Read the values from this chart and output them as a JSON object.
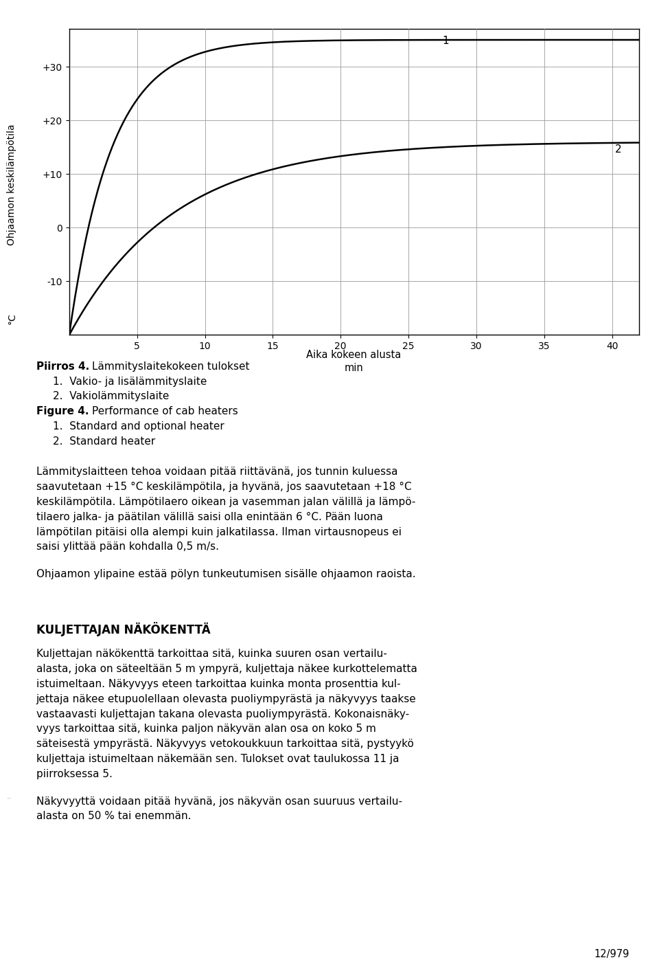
{
  "ylabel_top": "Ohjaamon keskilämpötila",
  "ylabel_bottom": "°C",
  "xlabel_line1": "Aika kokeen alusta",
  "xlabel_line2": "min",
  "xlim": [
    0,
    42
  ],
  "ylim": [
    -20,
    37
  ],
  "yticks": [
    -10,
    0,
    10,
    20,
    30
  ],
  "ytick_labels": [
    "-10",
    "0",
    "+10",
    "+20",
    "+30"
  ],
  "xticks": [
    5,
    10,
    15,
    20,
    25,
    30,
    35,
    40
  ],
  "curve1_label": "1",
  "curve2_label": "2",
  "bg_color": "#ffffff",
  "line_color": "#000000",
  "grid_color": "#999999",
  "caption_piirros_bold": "Piirros 4.",
  "caption_piirros_rest": "  Lämmityslaitekokeen tulokset",
  "caption_piirros_1": "    1.  Vakio- ja lisälämmityslaite",
  "caption_piirros_2": "    2.  Vakiolämmityslaite",
  "caption_figure_bold": "Figure 4.",
  "caption_figure_rest": "  Performance of cab heaters",
  "caption_figure_1": "    1.  Standard and optional heater",
  "caption_figure_2": "    2.  Standard heater",
  "body_para1": "Lämmityslaitteen tehoa voidaan pitää riittävänä, jos tunnin kuluessa saavutetaan +15°C keskilämpötila, ja hyvänä, jos saavutetaan +18°C keskilämpötila. Lämpötilaero oikean ja vasemman jalan välillä ja lämpö-tilaero jalka- ja päätilan välillä saisi olla enintään 6°C. Pään luona lämpötilan pitäisi olla alempi kuin jalkatilassa. Ilman virtausnopeus ei saisi ylitää pään kohdalla 0,5 m/s.",
  "body_para2": "Ohjaamon ylipaine estää pölyn tunkeutumisen sisälle ohjaamon raoista.",
  "section_title": "KULJETTAJAN NÄKÖKENTTÄ",
  "section_body": "Kuljettajan näkökenttä tarkoittaa sitä, kuinka suuren osan vertailu-alasta, joka on säteeltään 5 m ympäyrä, kuljettaja näkee kurkottelematta istuimeltaan. Näkyvyys eteen tarkoittaa kuinka monta prosenttia kul-jettaja näkee etupuolellaan olevasta puoliympäyrästä ja näkyvyys taakse vastaavasti kuljettajan takana olevasta puoliympäyrästä. Kokonaisnäky-vyys tarkoittaa sitä, kuinka paljon näkyvän alan osa on koko 5 m säteisestä ympäyrästä. Näkyvyys vetokoukkuun tarkoittaa sitä, pystyykö kuljettaja istuimeltaan näkemään sen. Tulokset ovat taulukossa 11 ja piirroksessa 5.",
  "last_para": "Näkyvyyttä voidaan pitää hyvänä, jos näkyvän osan suuruus vertailu-alasta on 50 % tai enemmän.",
  "page_num": "12/979"
}
